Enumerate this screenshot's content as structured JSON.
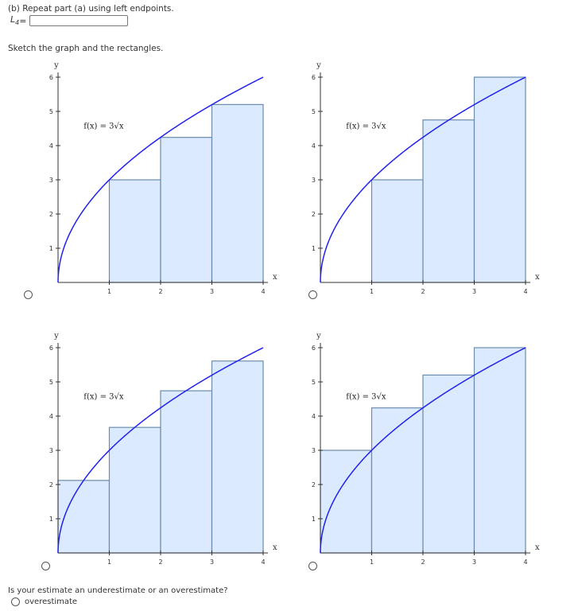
{
  "question": {
    "part_text": "(b) Repeat part (a) using left endpoints.",
    "l4_label": "L",
    "l4_sub": "4",
    "l4_eq": " =",
    "l4_value": "",
    "sketch_text": "Sketch the graph and the rectangles.",
    "estimate_text": "Is your estimate an underestimate or an overestimate?",
    "estimate_option": "overestimate"
  },
  "chart_data": [
    {
      "type": "bar",
      "function_label": "f(x) = 3√x",
      "xlabel": "x",
      "ylabel": "y",
      "xlim": [
        0,
        4
      ],
      "ylim": [
        0,
        6
      ],
      "x_ticks": [
        1,
        2,
        3,
        4
      ],
      "y_ticks": [
        1,
        2,
        3,
        4,
        5,
        6
      ],
      "rect_x": [
        1,
        2,
        3
      ],
      "rect_heights": [
        3,
        4.24,
        5.2
      ],
      "curve_color": "#2222ee",
      "rect_fill": "#dbeafe",
      "rect_stroke": "#6b8cae"
    },
    {
      "type": "bar",
      "function_label": "f(x) = 3√x",
      "xlabel": "x",
      "ylabel": "y",
      "xlim": [
        0,
        4
      ],
      "ylim": [
        0,
        6
      ],
      "x_ticks": [
        1,
        2,
        3,
        4
      ],
      "y_ticks": [
        1,
        2,
        3,
        4,
        5,
        6
      ],
      "rect_x": [
        1,
        2,
        3
      ],
      "rect_heights": [
        3,
        4.75,
        6
      ],
      "curve_color": "#2222ee",
      "rect_fill": "#dbeafe",
      "rect_stroke": "#6b8cae"
    },
    {
      "type": "bar",
      "function_label": "f(x) = 3√x",
      "xlabel": "x",
      "ylabel": "y",
      "xlim": [
        0,
        4
      ],
      "ylim": [
        0,
        6
      ],
      "x_ticks": [
        1,
        2,
        3,
        4
      ],
      "y_ticks": [
        1,
        2,
        3,
        4,
        5,
        6
      ],
      "rect_x": [
        0,
        1,
        2,
        3
      ],
      "rect_heights": [
        2.12,
        3.67,
        4.74,
        5.61
      ],
      "curve_color": "#2222ee",
      "rect_fill": "#dbeafe",
      "rect_stroke": "#6b8cae"
    },
    {
      "type": "bar",
      "function_label": "f(x) = 3√x",
      "xlabel": "x",
      "ylabel": "y",
      "xlim": [
        0,
        4
      ],
      "ylim": [
        0,
        6
      ],
      "x_ticks": [
        1,
        2,
        3,
        4
      ],
      "y_ticks": [
        1,
        2,
        3,
        4,
        5,
        6
      ],
      "rect_x": [
        0,
        1,
        2,
        3
      ],
      "rect_heights": [
        3,
        4.24,
        5.2,
        6
      ],
      "curve_color": "#2222ee",
      "rect_fill": "#dbeafe",
      "rect_stroke": "#6b8cae"
    }
  ]
}
